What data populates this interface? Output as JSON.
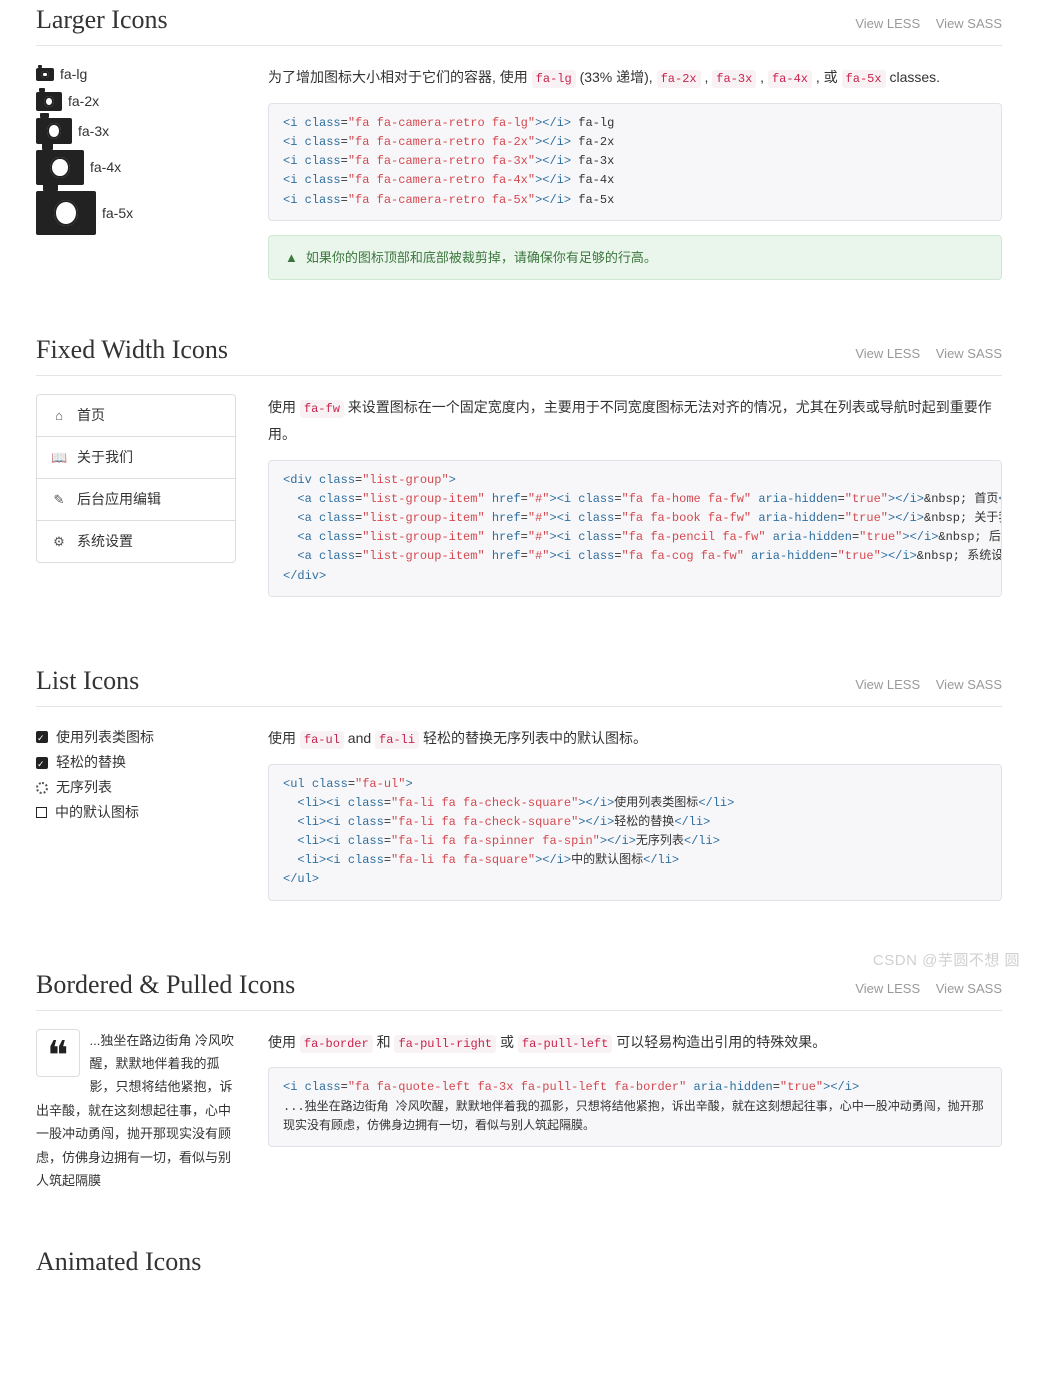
{
  "colors": {
    "heading": "#333333",
    "code_bg": "#f7f7f9",
    "code_border": "#e1e1e8",
    "inline_code_bg": "#f9f2f4",
    "inline_code_fg": "#c7254e",
    "tag_color": "#2f6f9f",
    "attr_value_color": "#d44950",
    "alert_bg": "#eaf6ec",
    "alert_border": "#cde9d3",
    "alert_fg": "#3c763d",
    "muted": "#999999"
  },
  "common": {
    "view_less": "View LESS",
    "view_sass": "View SASS"
  },
  "larger": {
    "title": "Larger Icons",
    "sizes": [
      {
        "label": "fa-lg",
        "class": "cam-lg"
      },
      {
        "label": "fa-2x",
        "class": "cam-2x"
      },
      {
        "label": "fa-3x",
        "class": "cam-3x"
      },
      {
        "label": "fa-4x",
        "class": "cam-4x"
      },
      {
        "label": "fa-5x",
        "class": "cam-5x"
      }
    ],
    "desc_pre": "为了增加图标大小相对于它们的容器, 使用 ",
    "desc_codes": [
      "fa-lg",
      "fa-2x",
      "fa-3x",
      "fa-4x",
      "fa-5x"
    ],
    "desc_mid1": " (33% 递增), ",
    "desc_sep": " , ",
    "desc_or": " , 或 ",
    "desc_post": " classes.",
    "code_lines": [
      "<i class=\"fa fa-camera-retro fa-lg\"></i> fa-lg",
      "<i class=\"fa fa-camera-retro fa-2x\"></i> fa-2x",
      "<i class=\"fa fa-camera-retro fa-3x\"></i> fa-3x",
      "<i class=\"fa fa-camera-retro fa-4x\"></i> fa-4x",
      "<i class=\"fa fa-camera-retro fa-5x\"></i> fa-5x"
    ],
    "alert": "如果你的图标顶部和底部被裁剪掉，请确保你有足够的行高。"
  },
  "fixed": {
    "title": "Fixed Width Icons",
    "menu": [
      {
        "icon": "⌂",
        "label": "首页",
        "name": "home"
      },
      {
        "icon": "📖",
        "label": "关于我们",
        "name": "about"
      },
      {
        "icon": "✎",
        "label": "后台应用编辑",
        "name": "edit"
      },
      {
        "icon": "⚙",
        "label": "系统设置",
        "name": "settings"
      }
    ],
    "desc_pre": "使用 ",
    "desc_code": "fa-fw",
    "desc_post": " 来设置图标在一个固定宽度内，主要用于不同宽度图标无法对齐的情况，尤其在列表或导航时起到重要作用。",
    "code_lines": [
      "<div class=\"list-group\">",
      "  <a class=\"list-group-item\" href=\"#\"><i class=\"fa fa-home fa-fw\" aria-hidden=\"true\"></i>&nbsp; 首页</a>",
      "  <a class=\"list-group-item\" href=\"#\"><i class=\"fa fa-book fa-fw\" aria-hidden=\"true\"></i>&nbsp; 关于我们</a>",
      "  <a class=\"list-group-item\" href=\"#\"><i class=\"fa fa-pencil fa-fw\" aria-hidden=\"true\"></i>&nbsp; 后台应用编辑</a>",
      "  <a class=\"list-group-item\" href=\"#\"><i class=\"fa fa-cog fa-fw\" aria-hidden=\"true\"></i>&nbsp; 系统设置</a>",
      "</div>"
    ]
  },
  "list": {
    "title": "List Icons",
    "items": [
      {
        "icon": "check",
        "label": "使用列表类图标"
      },
      {
        "icon": "check",
        "label": "轻松的替换"
      },
      {
        "icon": "spin",
        "label": "无序列表"
      },
      {
        "icon": "sq",
        "label": "中的默认图标"
      }
    ],
    "desc_pre": "使用 ",
    "desc_c1": "fa-ul",
    "desc_and": " and ",
    "desc_c2": "fa-li",
    "desc_post": " 轻松的替换无序列表中的默认图标。",
    "code_lines": [
      "<ul class=\"fa-ul\">",
      "  <li><i class=\"fa-li fa fa-check-square\"></i>使用列表类图标</li>",
      "  <li><i class=\"fa-li fa fa-check-square\"></i>轻松的替换</li>",
      "  <li><i class=\"fa-li fa fa-spinner fa-spin\"></i>无序列表</li>",
      "  <li><i class=\"fa-li fa fa-square\"></i>中的默认图标</li>",
      "</ul>"
    ]
  },
  "bordered": {
    "title": "Bordered & Pulled Icons",
    "quote_text": "...独坐在路边街角 冷风吹醒，默默地伴着我的孤影，只想将结他紧抱，诉出辛酸，就在这刻想起往事，心中一股冲动勇闯，抛开那现实没有顾虑，仿佛身边拥有一切，看似与别人筑起隔膜",
    "desc_pre": "使用 ",
    "desc_c1": "fa-border",
    "desc_and": " 和 ",
    "desc_c2": "fa-pull-right",
    "desc_or": " 或 ",
    "desc_c3": "fa-pull-left",
    "desc_post": " 可以轻易构造出引用的特殊效果。",
    "code_line1": "<i class=\"fa fa-quote-left fa-3x fa-pull-left fa-border\" aria-hidden=\"true\"></i>",
    "code_line2": "...独坐在路边街角 冷风吹醒，默默地伴着我的孤影，只想将结他紧抱，诉出辛酸，就在这刻想起往事，心中一股冲动勇闯，抛开那现实没有顾虑，仿佛身边拥有一切，看似与别人筑起隔膜。"
  },
  "animated": {
    "title": "Animated Icons"
  },
  "watermark": "CSDN @芋圆不想 圆"
}
